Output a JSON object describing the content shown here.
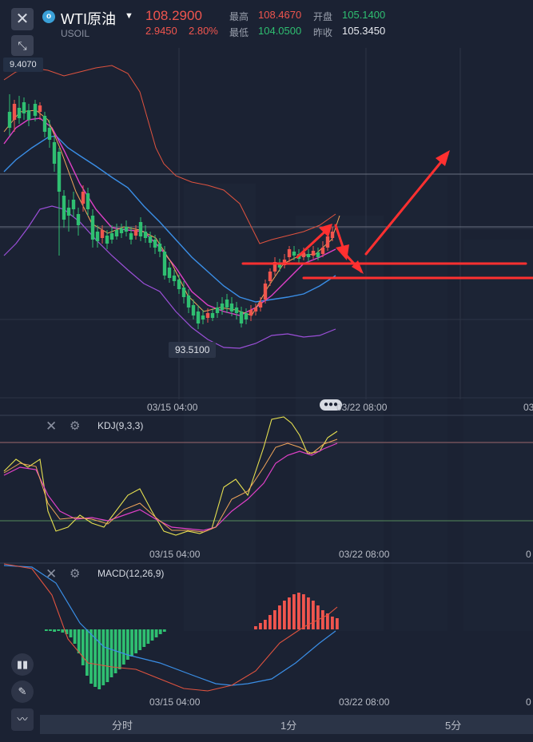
{
  "header": {
    "close_icon": "close-icon",
    "logo_letter": "o",
    "title": "WTI原油",
    "symbol": "USOIL",
    "price": "108.2900",
    "change_abs": "2.9450",
    "change_pct": "2.80%",
    "high_label": "最高",
    "high_value": "108.4670",
    "open_label": "开盘",
    "open_value": "105.1400",
    "low_label": "最低",
    "low_value": "104.0500",
    "prev_label": "昨收",
    "prev_value": "105.3450"
  },
  "main_chart": {
    "top_price_tag": "9.4070",
    "low_price_tag": "93.5100",
    "date_left": "03/15 04:00",
    "date_right": "03/22 08:00",
    "date_far": "03"
  },
  "kdj": {
    "label": "KDJ(9,3,3)",
    "date_left": "03/15 04:00",
    "date_right": "03/22 08:00",
    "date_far": "0"
  },
  "macd": {
    "label": "MACD(12,26,9)",
    "date_left": "03/15 04:00",
    "date_right": "03/22 08:00",
    "date_far": "0"
  },
  "tabs": [
    "分时",
    "1分",
    "5分"
  ],
  "colors": {
    "up": "#f0554e",
    "down": "#2fbf71",
    "blue_line": "#3a8ee6",
    "purple_line": "#9b4fd8",
    "magenta_line": "#e040c8",
    "yellow_line": "#e6e050",
    "annotation": "#ff3030",
    "background": "#1b2233"
  }
}
